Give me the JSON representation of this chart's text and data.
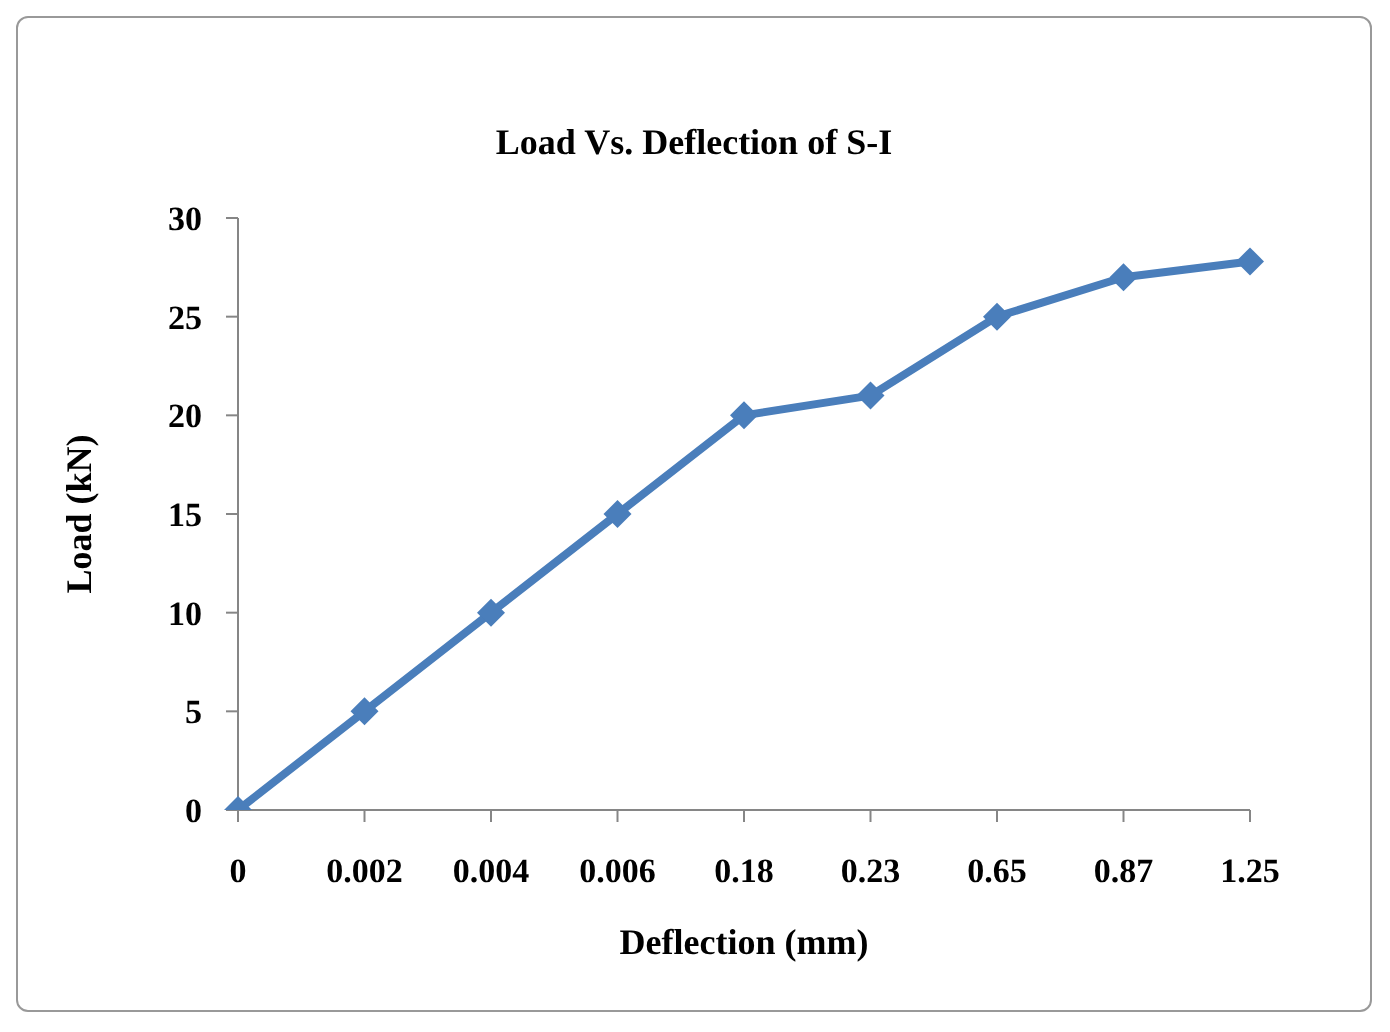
{
  "chart_data": {
    "type": "line",
    "title": "Load Vs. Deflection of S-I",
    "xlabel": "Deflection (mm)",
    "ylabel": "Load (kN)",
    "categories": [
      "0",
      "0.002",
      "0.004",
      "0.006",
      "0.18",
      "0.23",
      "0.65",
      "0.87",
      "1.25"
    ],
    "series": [
      {
        "color": "#4a7ebb",
        "values": [
          0,
          5,
          10,
          15,
          20,
          21,
          25,
          27,
          27.8
        ]
      }
    ],
    "ylim": [
      0,
      30
    ],
    "yticks": [
      0,
      5,
      10,
      15,
      20,
      25,
      30
    ],
    "grid": false,
    "legend": false,
    "marker": "diamond",
    "line_style": "solid"
  }
}
